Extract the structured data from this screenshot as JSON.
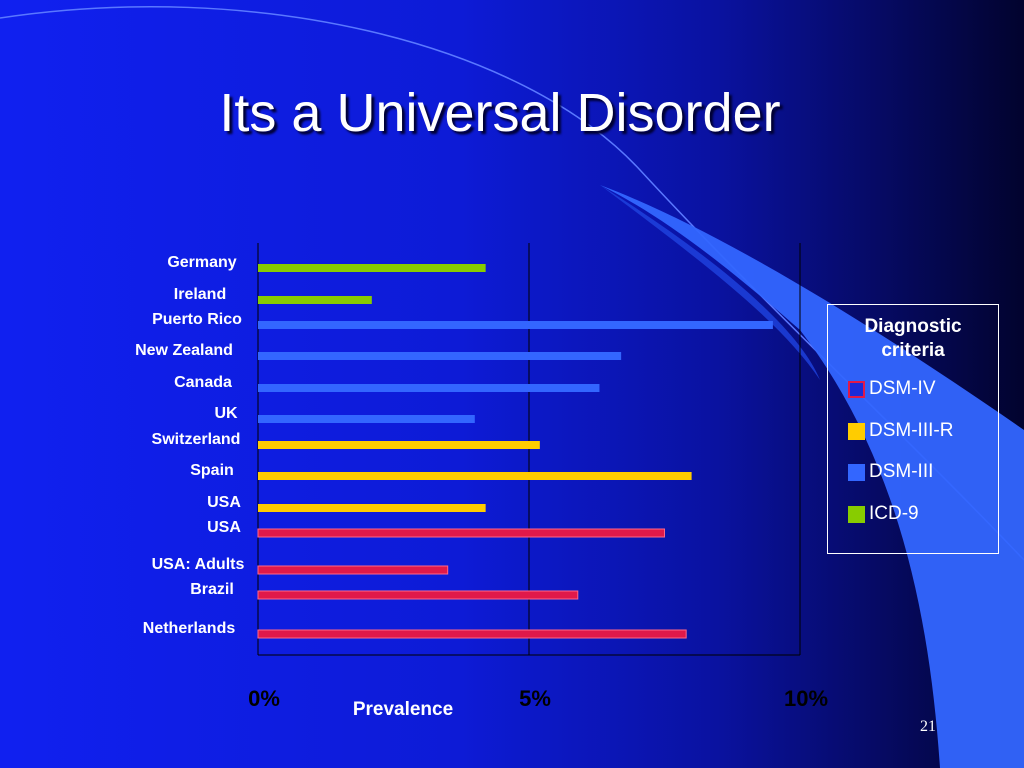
{
  "slide": {
    "title": "Its a Universal Disorder",
    "number": "21"
  },
  "legend": {
    "title": "Diagnostic\ncriteria",
    "items": [
      {
        "label": "DSM-IV",
        "fill": "#1a2bd9",
        "border": "#e0194a"
      },
      {
        "label": "DSM-III-R",
        "fill": "#ffcc00",
        "border": "#ffcc00"
      },
      {
        "label": "DSM-III",
        "fill": "#3366ff",
        "border": "#3366ff"
      },
      {
        "label": "ICD-9",
        "fill": "#88cc00",
        "border": "#88cc00"
      }
    ]
  },
  "chart_data": {
    "type": "bar",
    "orientation": "horizontal",
    "xlabel": "Prevalence",
    "xlim": [
      0,
      10
    ],
    "xticks": [
      0,
      5,
      10
    ],
    "xtick_labels": [
      "0%",
      "5%",
      "10%"
    ],
    "grid": true,
    "legend_position": "right",
    "categories": [
      "Germany",
      "Ireland",
      "Puerto Rico",
      "New Zealand",
      "Canada",
      "UK",
      "Switzerland",
      "Spain",
      "USA",
      "USA",
      "USA: Adults",
      "Brazil",
      "Netherlands"
    ],
    "values": [
      4.2,
      2.1,
      9.5,
      6.7,
      6.3,
      4.0,
      5.2,
      8.0,
      4.2,
      7.5,
      3.5,
      5.9,
      7.9
    ],
    "criteria": [
      "ICD-9",
      "ICD-9",
      "DSM-III",
      "DSM-III",
      "DSM-III",
      "DSM-III",
      "DSM-III-R",
      "DSM-III-R",
      "DSM-III-R",
      "DSM-IV",
      "DSM-IV",
      "DSM-IV",
      "DSM-IV"
    ],
    "colors": {
      "ICD-9": "#88cc00",
      "DSM-III": "#3366ff",
      "DSM-III-R": "#ffcc00",
      "DSM-IV": "#e0194a"
    }
  }
}
